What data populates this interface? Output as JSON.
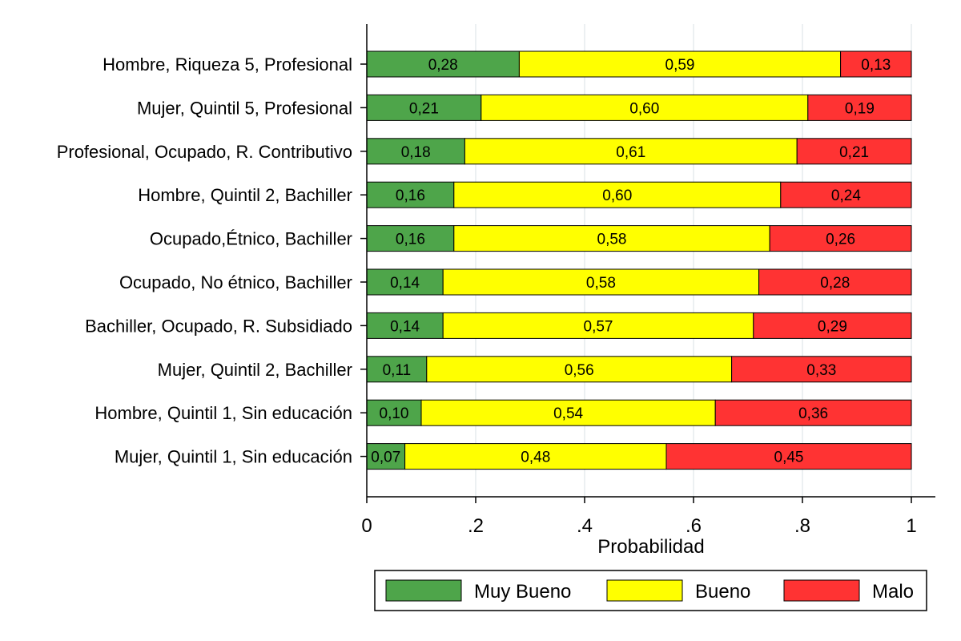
{
  "chart_data": {
    "type": "bar",
    "orientation": "horizontal",
    "stacked": true,
    "categories": [
      "Hombre, Riqueza 5, Profesional",
      "Mujer, Quintil 5, Profesional",
      "Profesional, Ocupado, R. Contributivo",
      "Hombre, Quintil 2, Bachiller",
      "Ocupado,Étnico, Bachiller",
      "Ocupado, No étnico, Bachiller",
      "Bachiller, Ocupado, R. Subsidiado",
      "Mujer, Quintil 2, Bachiller",
      "Hombre, Quintil 1, Sin educación",
      "Mujer, Quintil 1, Sin educación"
    ],
    "series": [
      {
        "name": "Muy Bueno",
        "color": "#4ea54a",
        "values": [
          0.28,
          0.21,
          0.18,
          0.16,
          0.16,
          0.14,
          0.14,
          0.11,
          0.1,
          0.07
        ],
        "labels": [
          "0,28",
          "0,21",
          "0,18",
          "0,16",
          "0,16",
          "0,14",
          "0,14",
          "0,11",
          "0,10",
          "0,07"
        ]
      },
      {
        "name": "Bueno",
        "color": "#ffff00",
        "values": [
          0.59,
          0.6,
          0.61,
          0.6,
          0.58,
          0.58,
          0.57,
          0.56,
          0.54,
          0.48
        ],
        "labels": [
          "0,59",
          "0,60",
          "0,61",
          "0,60",
          "0,58",
          "0,58",
          "0,57",
          "0,56",
          "0,54",
          "0,48"
        ]
      },
      {
        "name": "Malo",
        "color": "#ff3333",
        "values": [
          0.13,
          0.19,
          0.21,
          0.24,
          0.26,
          0.28,
          0.29,
          0.33,
          0.36,
          0.45
        ],
        "labels": [
          "0,13",
          "0,19",
          "0,21",
          "0,24",
          "0,26",
          "0,28",
          "0,29",
          "0,33",
          "0,36",
          "0,45"
        ]
      }
    ],
    "xlabel": "Probabilidad",
    "xlim": [
      0,
      1
    ],
    "xticks": [
      0,
      0.2,
      0.4,
      0.6,
      0.8,
      1
    ],
    "xtick_labels": [
      "0",
      ".2",
      ".4",
      ".6",
      ".8",
      "1"
    ],
    "grid": true,
    "legend_position": "bottom"
  }
}
